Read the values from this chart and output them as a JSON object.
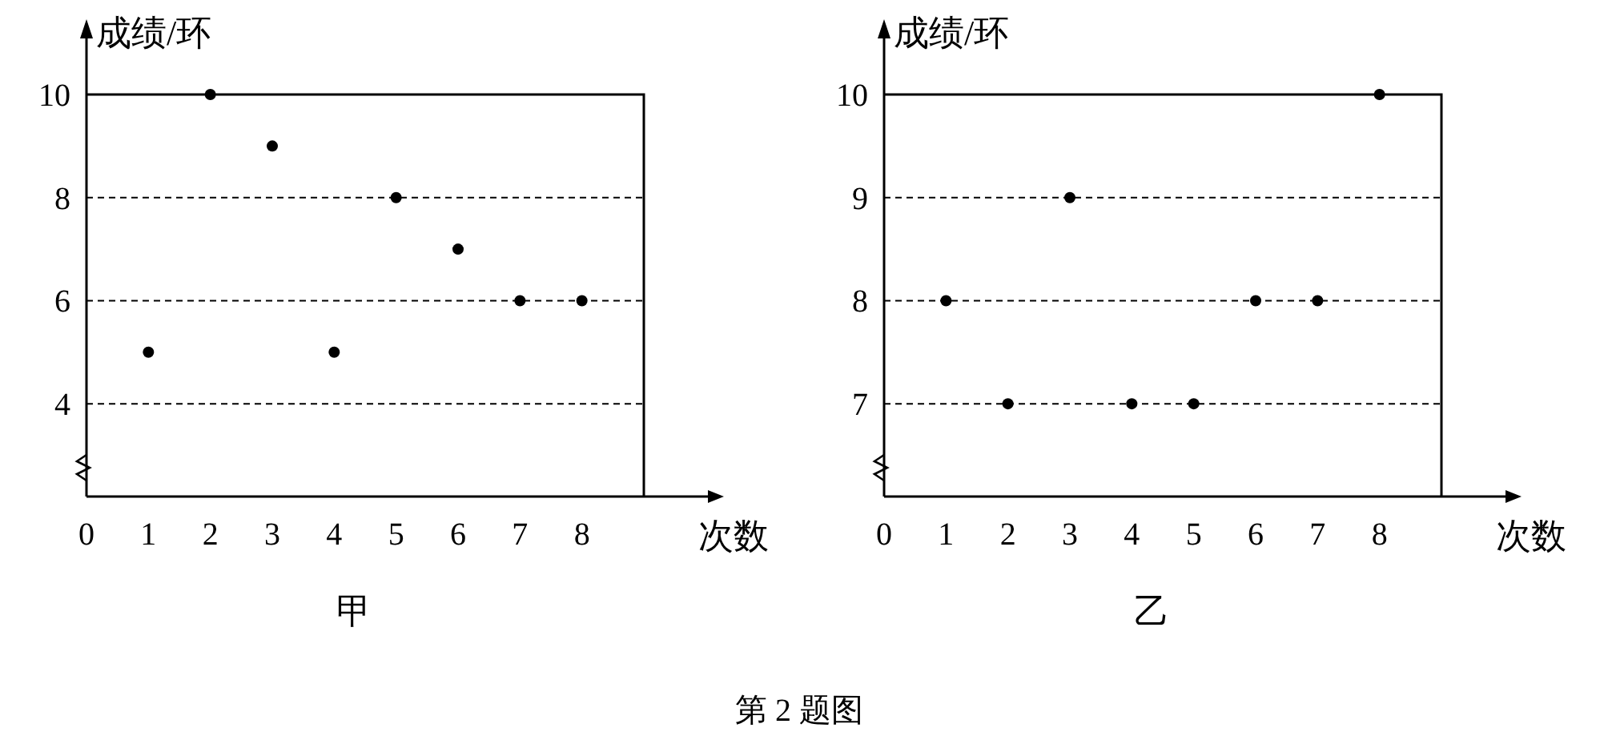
{
  "chart_data": [
    {
      "type": "scatter",
      "title": "甲",
      "xlabel": "次数",
      "ylabel": "成绩/环",
      "x": [
        1,
        2,
        3,
        4,
        5,
        6,
        7,
        8
      ],
      "values": [
        5,
        10,
        9,
        5,
        8,
        7,
        6,
        6
      ],
      "color": "#000000",
      "marker": "circle",
      "grid": "y",
      "xlim": [
        0,
        9
      ],
      "ylim": [
        2.2,
        10
      ],
      "xticks": [
        0,
        1,
        2,
        3,
        4,
        5,
        6,
        7,
        8
      ],
      "yticks": [
        4,
        6,
        8,
        10
      ]
    },
    {
      "type": "scatter",
      "title": "乙",
      "xlabel": "次数",
      "ylabel": "成绩/环",
      "x": [
        1,
        2,
        3,
        4,
        5,
        6,
        7,
        8
      ],
      "values": [
        8,
        7,
        9,
        7,
        7,
        8,
        8,
        10
      ],
      "color": "#000000",
      "marker": "circle",
      "grid": "y",
      "xlim": [
        0,
        9
      ],
      "ylim": [
        6.1,
        10
      ],
      "xticks": [
        0,
        1,
        2,
        3,
        4,
        5,
        6,
        7,
        8
      ],
      "yticks": [
        7,
        8,
        9,
        10
      ],
      "annotations": [
        "第 2 题图"
      ]
    }
  ]
}
